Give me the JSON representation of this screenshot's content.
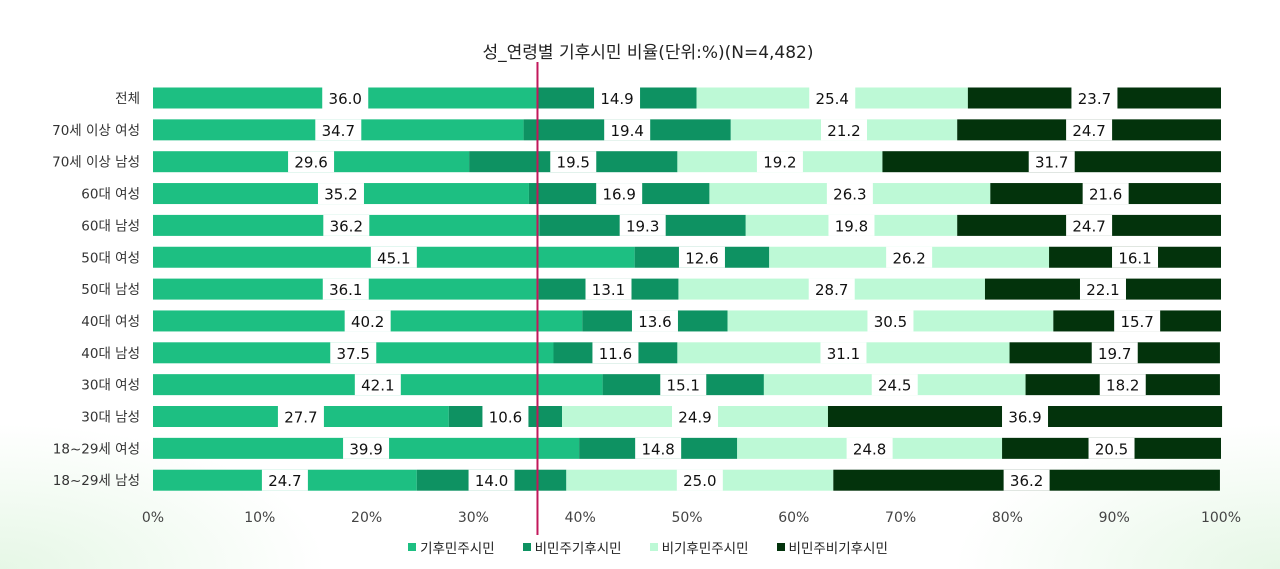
{
  "chart_data": {
    "type": "bar",
    "orientation": "horizontal",
    "stacked": "percent",
    "title": "성_연령별 기후시민 비율(단위:%)(N=4,482)",
    "categories": [
      "전체",
      "70세 이상 여성",
      "70세 이상 남성",
      "60대 여성",
      "60대 남성",
      "50대 여성",
      "50대 남성",
      "40대 여성",
      "40대 남성",
      "30대 여성",
      "30대 남성",
      "18~29세 여성",
      "18~29세 남성"
    ],
    "series": [
      {
        "name": "기후민주시민",
        "color": "#1DBF82",
        "values": [
          36.0,
          34.7,
          29.6,
          35.2,
          36.2,
          45.1,
          36.1,
          40.2,
          37.5,
          42.1,
          27.7,
          39.9,
          24.7
        ]
      },
      {
        "name": "비민주기후시민",
        "color": "#0E9262",
        "values": [
          14.9,
          19.4,
          19.5,
          16.9,
          19.3,
          12.6,
          13.1,
          13.6,
          11.6,
          15.1,
          10.6,
          14.8,
          14.0
        ]
      },
      {
        "name": "비기후민주시민",
        "color": "#BDF9D6",
        "values": [
          25.4,
          21.2,
          19.2,
          26.3,
          19.8,
          26.2,
          28.7,
          30.5,
          31.1,
          24.5,
          24.9,
          24.8,
          25.0
        ]
      },
      {
        "name": "비민주비기후시민",
        "color": "#03330C",
        "values": [
          23.7,
          24.7,
          31.7,
          21.6,
          24.7,
          16.1,
          22.1,
          15.7,
          19.7,
          18.2,
          36.9,
          20.5,
          36.2
        ]
      }
    ],
    "xlim": [
      0,
      100
    ],
    "xticks": [
      "0%",
      "10%",
      "20%",
      "30%",
      "40%",
      "50%",
      "60%",
      "70%",
      "80%",
      "90%",
      "100%"
    ],
    "reference_line": {
      "value": 36.0,
      "color": "#C2185B"
    },
    "legend_position": "bottom",
    "grid": false
  }
}
